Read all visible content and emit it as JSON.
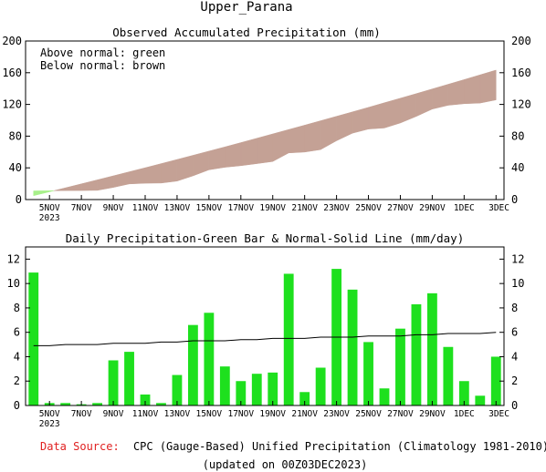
{
  "page_title": "Upper_Parana",
  "footer": {
    "source_label": "Data Source:",
    "source_text": "CPC (Gauge-Based) Unified Precipitation (Climatology 1981-2010)",
    "updated": "(updated on 00Z03DEC2023)"
  },
  "colors": {
    "obs_bar": "#1ee01e",
    "above_fill": "#a8f08a",
    "below_fill": "#c4a195",
    "normal_line": "#000000",
    "source_label": "#e02020"
  },
  "x_tick_labels": [
    "5NOV",
    "7NOV",
    "9NOV",
    "11NOV",
    "13NOV",
    "15NOV",
    "17NOV",
    "19NOV",
    "21NOV",
    "23NOV",
    "25NOV",
    "27NOV",
    "29NOV",
    "1DEC",
    "3DEC"
  ],
  "x_year_label": "2023",
  "chart_data": [
    {
      "type": "area",
      "title": "Observed Accumulated Precipitation (mm)",
      "legend": [
        "Above normal: green",
        "Below normal: brown"
      ],
      "legend_placement": "top-left",
      "grid": false,
      "ylim": [
        0,
        200
      ],
      "yticks": [
        0,
        40,
        80,
        120,
        160,
        200
      ],
      "x_dates": [
        "4NOV",
        "5NOV",
        "6NOV",
        "7NOV",
        "8NOV",
        "9NOV",
        "10NOV",
        "11NOV",
        "12NOV",
        "13NOV",
        "14NOV",
        "15NOV",
        "16NOV",
        "17NOV",
        "18NOV",
        "19NOV",
        "20NOV",
        "21NOV",
        "22NOV",
        "23NOV",
        "24NOV",
        "25NOV",
        "26NOV",
        "27NOV",
        "28NOV",
        "29NOV",
        "30NOV",
        "1DEC",
        "2DEC",
        "3DEC"
      ],
      "series": [
        {
          "name": "observed",
          "values": [
            10.9,
            11.1,
            11.3,
            11.4,
            11.6,
            15.3,
            19.7,
            20.6,
            20.8,
            23.3,
            29.9,
            37.5,
            40.7,
            42.7,
            45.3,
            48.0,
            58.8,
            59.9,
            63.0,
            74.2,
            83.7,
            88.9,
            90.3,
            96.6,
            104.9,
            114.1,
            118.9,
            120.9,
            121.7,
            125.7
          ]
        },
        {
          "name": "normal",
          "values": [
            4.9,
            9.8,
            14.8,
            19.8,
            24.8,
            29.9,
            35.0,
            40.1,
            45.3,
            50.5,
            55.8,
            61.1,
            66.4,
            71.8,
            77.3,
            82.8,
            88.3,
            93.8,
            99.4,
            105.0,
            110.6,
            116.3,
            122.1,
            127.8,
            133.6,
            139.5,
            145.4,
            151.3,
            157.3,
            163.3
          ]
        }
      ]
    },
    {
      "type": "bar",
      "title": "Daily Precipitation-Green Bar & Normal-Solid Line (mm/day)",
      "grid": false,
      "ylim": [
        0,
        13
      ],
      "yticks": [
        0,
        2,
        4,
        6,
        8,
        10,
        12
      ],
      "x_dates": [
        "4NOV",
        "5NOV",
        "6NOV",
        "7NOV",
        "8NOV",
        "9NOV",
        "10NOV",
        "11NOV",
        "12NOV",
        "13NOV",
        "14NOV",
        "15NOV",
        "16NOV",
        "17NOV",
        "18NOV",
        "19NOV",
        "20NOV",
        "21NOV",
        "22NOV",
        "23NOV",
        "24NOV",
        "25NOV",
        "26NOV",
        "27NOV",
        "28NOV",
        "29NOV",
        "30NOV",
        "1DEC",
        "2DEC",
        "3DEC"
      ],
      "series": [
        {
          "name": "observed",
          "values": [
            10.9,
            0.2,
            0.2,
            0.1,
            0.2,
            3.7,
            4.4,
            0.9,
            0.2,
            2.5,
            6.6,
            7.6,
            3.2,
            2.0,
            2.6,
            2.7,
            10.8,
            1.1,
            3.1,
            11.2,
            9.5,
            5.2,
            1.4,
            6.3,
            8.3,
            9.2,
            4.8,
            2.0,
            0.8,
            4.0
          ]
        },
        {
          "name": "normal",
          "values": [
            4.9,
            4.9,
            5.0,
            5.0,
            5.0,
            5.1,
            5.1,
            5.1,
            5.2,
            5.2,
            5.3,
            5.3,
            5.3,
            5.4,
            5.4,
            5.5,
            5.5,
            5.5,
            5.6,
            5.6,
            5.6,
            5.7,
            5.7,
            5.7,
            5.8,
            5.8,
            5.9,
            5.9,
            5.9,
            6.0
          ]
        }
      ]
    }
  ]
}
